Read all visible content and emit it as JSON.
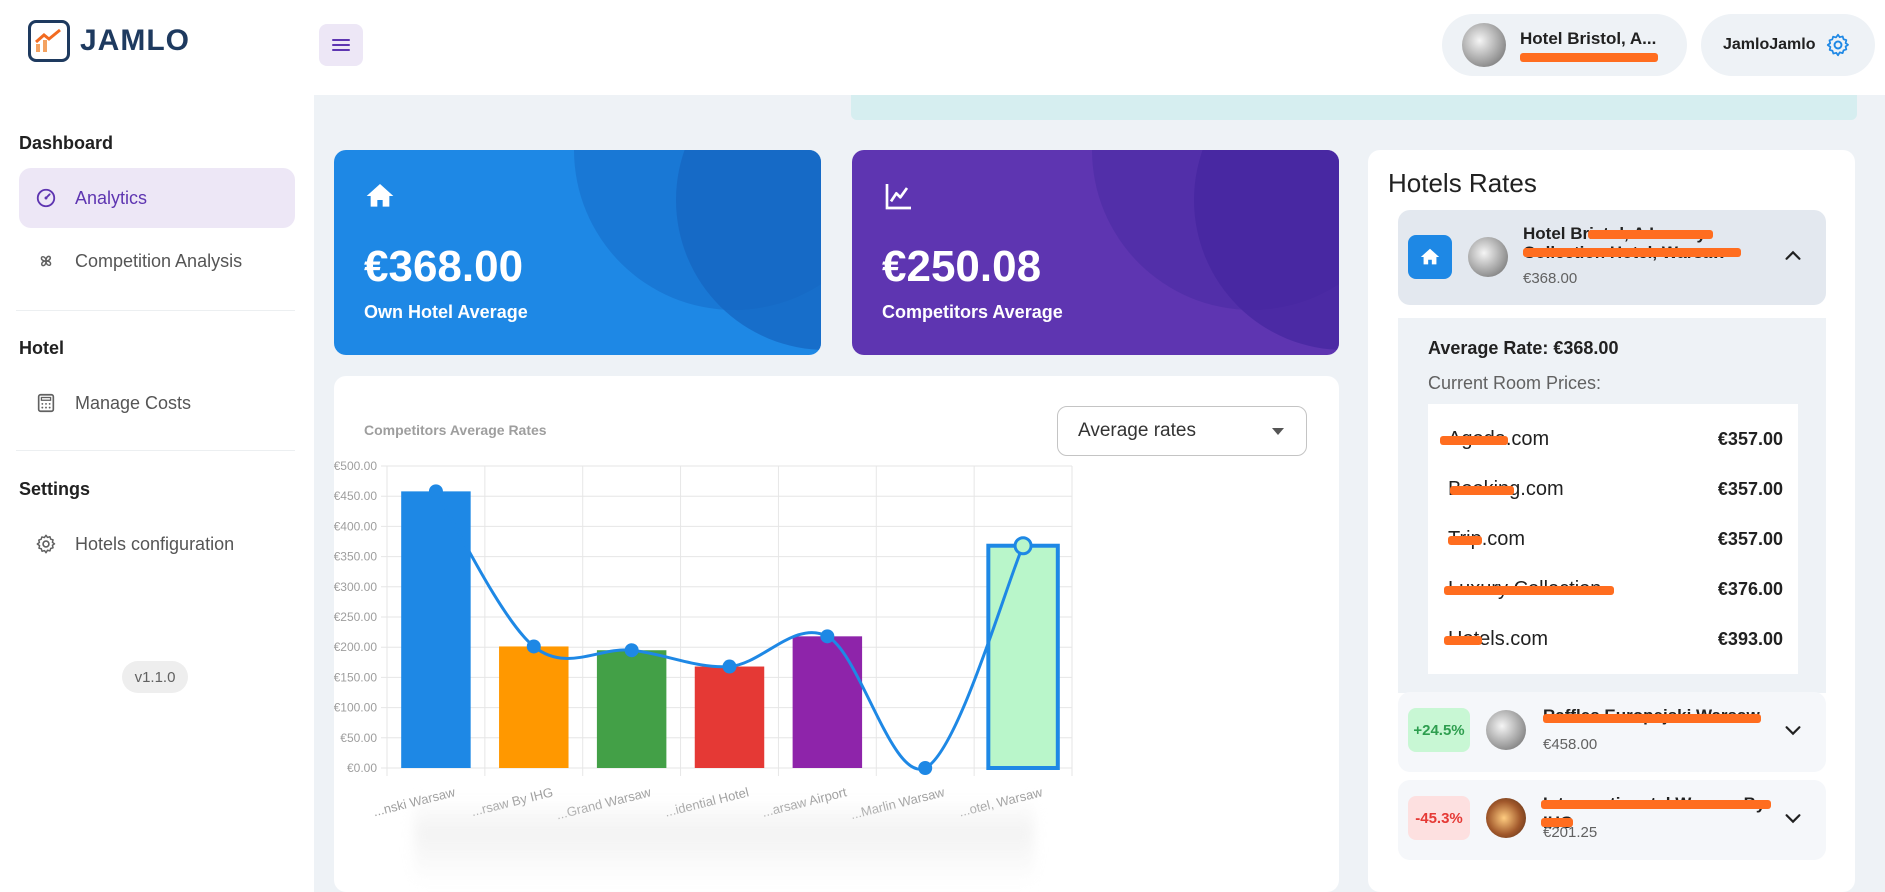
{
  "brand": {
    "name": "JAMLO"
  },
  "header": {
    "hotel_name": "Hotel Bristol, A...",
    "user_name": "JamloJamlo"
  },
  "sidebar": {
    "sections": [
      {
        "title": "Dashboard",
        "items": [
          {
            "label": "Analytics",
            "icon": "speedometer-icon",
            "active": true
          },
          {
            "label": "Competition Analysis",
            "icon": "pinwheel-icon"
          }
        ]
      },
      {
        "title": "Hotel",
        "items": [
          {
            "label": "Manage Costs",
            "icon": "calculator-icon"
          }
        ]
      },
      {
        "title": "Settings",
        "items": [
          {
            "label": "Hotels configuration",
            "icon": "gear-icon"
          }
        ]
      }
    ],
    "version": "v1.1.0"
  },
  "stats": {
    "own": {
      "value": "€368.00",
      "label": "Own Hotel Average",
      "color": "#1e88e5"
    },
    "competitors": {
      "value": "€250.08",
      "label": "Competitors Average",
      "color": "#5e35b1"
    }
  },
  "chart": {
    "title": "Competitors Average Rates",
    "select_value": "Average rates"
  },
  "chart_data": {
    "type": "bar",
    "title": "Competitors Average Rates",
    "categories": [
      "...nski Warsaw",
      "...rsaw By IHG",
      "...Grand Warsaw",
      "...idential Hotel",
      "...arsaw Airport",
      "...Marlin Warsaw",
      "...otel, Warsaw"
    ],
    "values": [
      458,
      201.25,
      195,
      168,
      218,
      0,
      368
    ],
    "bar_colors": [
      "#1e88e5",
      "#ff9800",
      "#43a047",
      "#e53935",
      "#8e24aa",
      "#9e9e9e",
      "#b9f6ca"
    ],
    "highlight_index": 6,
    "line_color": "#1e88e5",
    "ylim": [
      0,
      500
    ],
    "yticks": [
      "€0.00",
      "€50.00",
      "€100.00",
      "€150.00",
      "€200.00",
      "€250.00",
      "€300.00",
      "€350.00",
      "€400.00",
      "€450.00",
      "€500.00"
    ],
    "grid": true
  },
  "rates": {
    "title": "Hotels Rates",
    "own": {
      "name": "Hotel Bristol, A Luxury Collection Hotel, Warsaw",
      "price": "€368.00",
      "average_rate": "Average Rate: €368.00",
      "current_label": "Current Room Prices:",
      "prices": [
        {
          "site": "Agoda.com",
          "price": "€357.00"
        },
        {
          "site": "Booking.com",
          "price": "€357.00"
        },
        {
          "site": "Trip.com",
          "price": "€357.00"
        },
        {
          "site": "Luxury Collection",
          "price": "€376.00"
        },
        {
          "site": "Hotels.com",
          "price": "€393.00"
        }
      ]
    },
    "competitors": [
      {
        "badge": "+24.5%",
        "name": "Raffles Europejski Warsaw",
        "price": "€458.00",
        "trend": "pos"
      },
      {
        "badge": "-45.3%",
        "name": "Intercontinental Warsaw By IHG",
        "price": "€201.25",
        "trend": "neg"
      }
    ]
  }
}
